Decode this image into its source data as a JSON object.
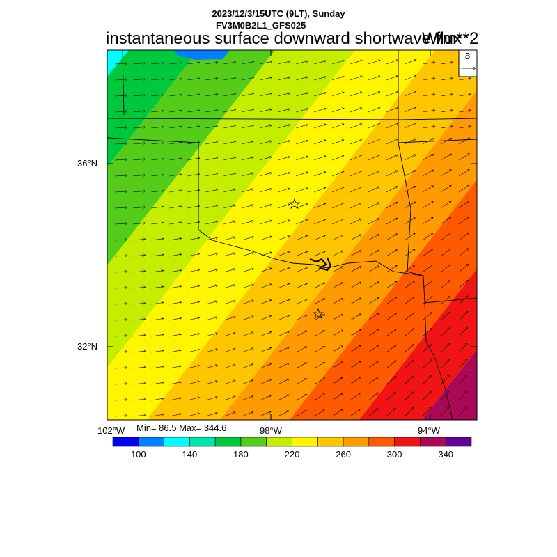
{
  "header": {
    "date_line": "2023/12/3/15UTC (9LT), Sunday",
    "model_line": "FV3M0B2L1_GFS025",
    "field_title": "instantaneous surface downward shortwave flux",
    "units": "W/m**2"
  },
  "axes": {
    "lat_labels": [
      "36°N",
      "32°N"
    ],
    "lon_labels": [
      "102°W",
      "98°W",
      "94°W"
    ]
  },
  "stats": {
    "text": "Min= 86.5 Max= 344.6",
    "min": 86.5,
    "max": 344.6
  },
  "wind_reference": {
    "value": "8"
  },
  "colorbar": {
    "colors": [
      "#0000f5",
      "#0080ff",
      "#00ffff",
      "#00e4aa",
      "#00c83c",
      "#55cb1a",
      "#c4ed00",
      "#fff500",
      "#ffc600",
      "#ff9a00",
      "#ff5a00",
      "#f01414",
      "#aa0a55",
      "#64009a"
    ],
    "tick_labels": [
      "100",
      "140",
      "180",
      "220",
      "260",
      "300",
      "340"
    ]
  },
  "map_features": {
    "stars": [
      "city-marker-north",
      "city-marker-south"
    ]
  }
}
